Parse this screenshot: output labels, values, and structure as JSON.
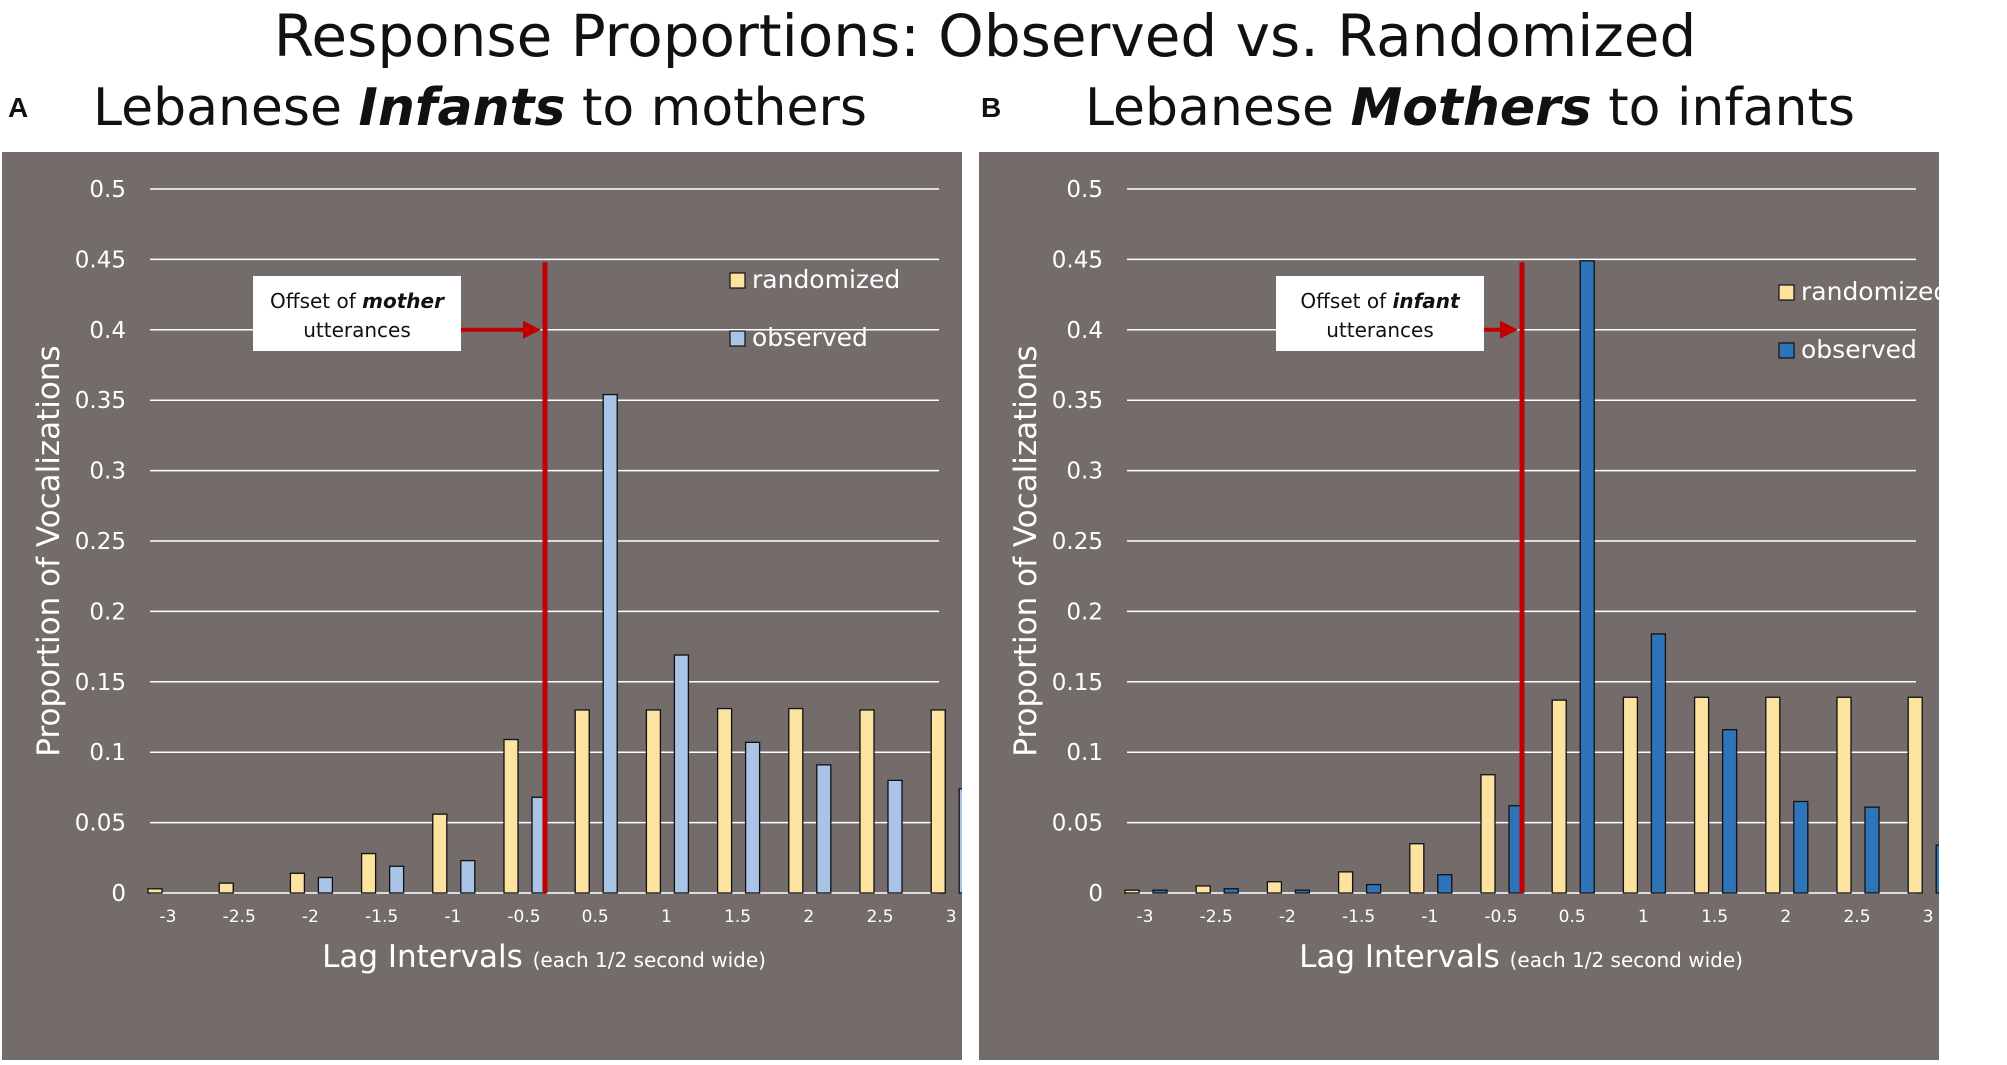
{
  "page_title": "Response Proportions: Observed vs. Randomized",
  "colors": {
    "background": "#736c6b",
    "randomized": "#fce4a0",
    "observed_a": "#a9c4e6",
    "observed_b": "#2f73b8",
    "offset_line": "#c00000",
    "grid": "#ffffff"
  },
  "chart_data": [
    {
      "type": "bar",
      "panel_letter": "A",
      "title_pre": "Lebanese ",
      "title_bold": "Infants",
      "title_post": " to mothers",
      "ylabel": "Proportion of Vocalizations",
      "xlabel": "Lag Intervals",
      "xlabel_note": "(each 1/2 second wide)",
      "ylim": [
        0,
        0.5
      ],
      "yticks": [
        "0",
        "0.05",
        "0.1",
        "0.15",
        "0.2",
        "0.25",
        "0.3",
        "0.35",
        "0.4",
        "0.45",
        "0.5"
      ],
      "categories": [
        "-3",
        "-2.5",
        "-2",
        "-1.5",
        "-1",
        "-0.5",
        "0.5",
        "1",
        "1.5",
        "2",
        "2.5",
        "3"
      ],
      "series": [
        {
          "name": "randomized",
          "values": [
            0.003,
            0.007,
            0.014,
            0.028,
            0.056,
            0.109,
            0.13,
            0.13,
            0.131,
            0.131,
            0.13,
            0.13
          ]
        },
        {
          "name": "observed",
          "values": [
            0,
            0,
            0.011,
            0.019,
            0.023,
            0.068,
            0.354,
            0.169,
            0.107,
            0.091,
            0.08,
            0.074
          ]
        }
      ],
      "legend": [
        "randomized",
        "observed"
      ],
      "annotation": {
        "pre": "Offset of ",
        "bold": "mother",
        "line2": "utterances"
      }
    },
    {
      "type": "bar",
      "panel_letter": "B",
      "title_pre": "Lebanese ",
      "title_bold": "Mothers",
      "title_post": " to infants",
      "ylabel": "Proportion of Vocalizations",
      "xlabel": "Lag Intervals",
      "xlabel_note": "(each 1/2 second wide)",
      "ylim": [
        0,
        0.5
      ],
      "yticks": [
        "0",
        "0.05",
        "0.1",
        "0.15",
        "0.2",
        "0.25",
        "0.3",
        "0.35",
        "0.4",
        "0.45",
        "0.5"
      ],
      "categories": [
        "-3",
        "-2.5",
        "-2",
        "-1.5",
        "-1",
        "-0.5",
        "0.5",
        "1",
        "1.5",
        "2",
        "2.5",
        "3"
      ],
      "series": [
        {
          "name": "randomized",
          "values": [
            0.002,
            0.005,
            0.008,
            0.015,
            0.035,
            0.084,
            0.137,
            0.139,
            0.139,
            0.139,
            0.139,
            0.139
          ]
        },
        {
          "name": "observed",
          "values": [
            0.002,
            0.003,
            0.002,
            0.006,
            0.013,
            0.062,
            0.449,
            0.184,
            0.116,
            0.065,
            0.061,
            0.034
          ]
        }
      ],
      "legend": [
        "randomized",
        "observed"
      ],
      "annotation": {
        "pre": "Offset of ",
        "bold": "infant",
        "line2": "utterances"
      }
    }
  ]
}
